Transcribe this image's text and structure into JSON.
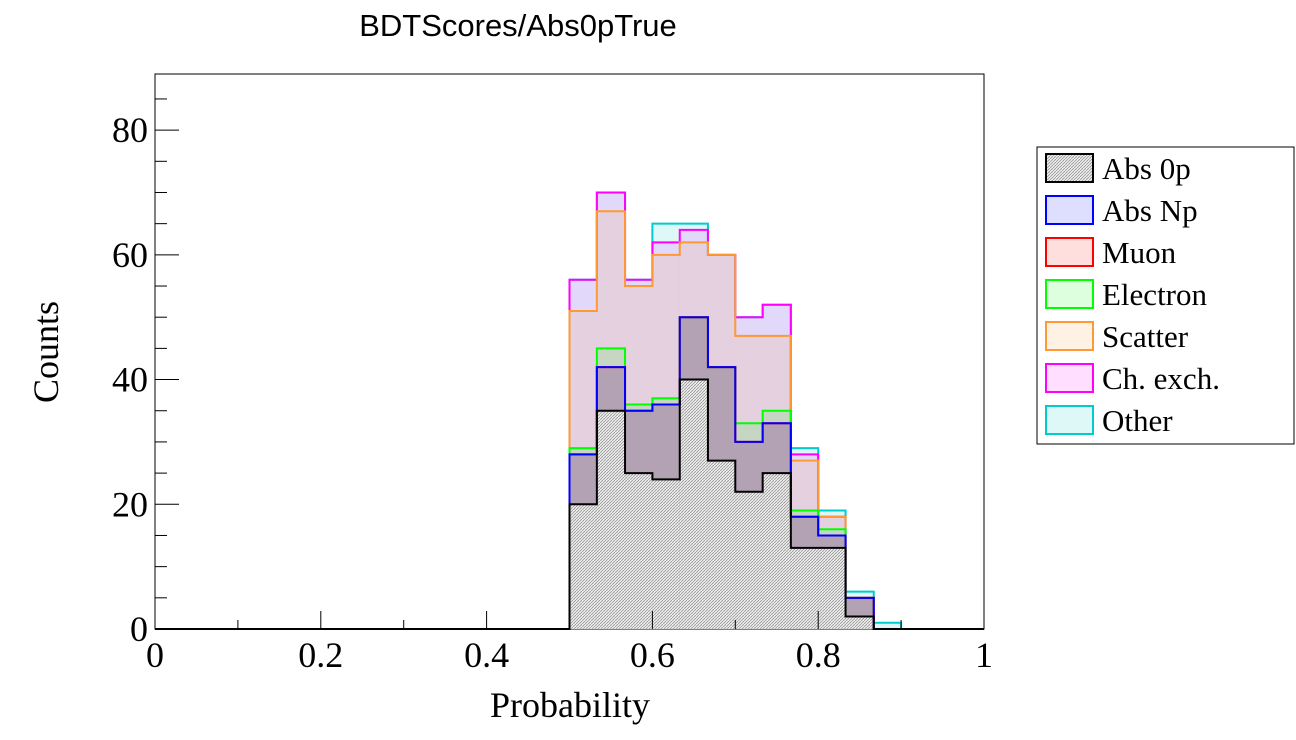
{
  "chart_data": {
    "type": "bar",
    "title": "BDTScores/Abs0pTrue",
    "xlabel": "Probability",
    "ylabel": "Counts",
    "xlim": [
      0,
      1
    ],
    "ylim": [
      0,
      89
    ],
    "xticks": [
      "0",
      "0.2",
      "0.4",
      "0.6",
      "0.8",
      "1"
    ],
    "yticks": [
      "0",
      "20",
      "40",
      "60",
      "80"
    ],
    "stacked": true,
    "bin_edges": [
      0.5,
      0.533,
      0.567,
      0.6,
      0.633,
      0.667,
      0.7,
      0.733,
      0.767,
      0.8,
      0.833,
      0.867,
      0.9
    ],
    "legend_position": "right",
    "series": [
      {
        "name": "Abs 0p",
        "color": "#000000",
        "values": [
          20,
          35,
          25,
          24,
          40,
          27,
          22,
          25,
          13,
          13,
          2,
          0
        ]
      },
      {
        "name": "Abs Np",
        "color": "#0000ff",
        "values": [
          8,
          7,
          10,
          12,
          10,
          15,
          8,
          8,
          5,
          2,
          3,
          0
        ]
      },
      {
        "name": "Muon",
        "color": "#ff0000",
        "values": [
          0,
          0,
          0,
          0,
          0,
          0,
          0,
          0,
          0,
          0,
          0,
          0
        ]
      },
      {
        "name": "Electron",
        "color": "#00ff00",
        "values": [
          1,
          3,
          1,
          1,
          0,
          0,
          3,
          2,
          1,
          1,
          0,
          0
        ]
      },
      {
        "name": "Scatter",
        "color": "#ff9933",
        "values": [
          22,
          22,
          19,
          23,
          12,
          18,
          14,
          12,
          8,
          2,
          0,
          0
        ]
      },
      {
        "name": "Ch. exch.",
        "color": "#ff00ff",
        "values": [
          5,
          3,
          1,
          2,
          2,
          0,
          3,
          5,
          1,
          0,
          0,
          0
        ]
      },
      {
        "name": "Other",
        "color": "#00cccc",
        "values": [
          0,
          0,
          0,
          3,
          1,
          0,
          0,
          0,
          1,
          1,
          1,
          1
        ]
      }
    ]
  }
}
